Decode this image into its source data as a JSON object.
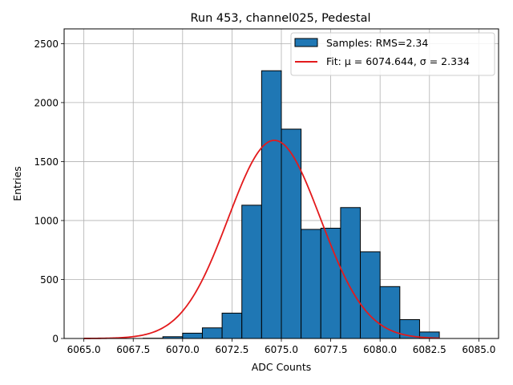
{
  "chart_data": {
    "type": "bar",
    "title": "Run 453, channel025, Pedestal",
    "xlabel": "ADC Counts",
    "ylabel": "Entries",
    "xlim": [
      6064.0,
      6086.0
    ],
    "ylim": [
      0,
      2625
    ],
    "xticks": [
      "6065.0",
      "6067.5",
      "6070.0",
      "6072.5",
      "6075.0",
      "6077.5",
      "6080.0",
      "6082.5",
      "6085.0"
    ],
    "yticks": [
      "0",
      "500",
      "1000",
      "1500",
      "2000",
      "2500"
    ],
    "grid": true,
    "legend_position": "top-right",
    "bins": {
      "edges": [
        6068,
        6069,
        6070,
        6071,
        6072,
        6073,
        6074,
        6075,
        6076,
        6077,
        6078,
        6079,
        6080,
        6081,
        6082
      ],
      "counts": [
        2,
        15,
        45,
        90,
        215,
        1130,
        2270,
        1775,
        925,
        935,
        1110,
        735,
        440,
        160,
        55
      ]
    },
    "fit": {
      "mu": 6074.644,
      "sigma": 2.334,
      "amplitude": 1680,
      "x_range": [
        6065.0,
        6083.0
      ]
    },
    "legend": [
      {
        "label": "Samples: RMS=2.34",
        "kind": "patch"
      },
      {
        "label": "Fit: μ = 6074.644, σ = 2.334",
        "kind": "line"
      }
    ],
    "colors": {
      "bar_fill": "#1f77b4",
      "bar_edge": "#000000",
      "fit_line": "#e31a1c",
      "grid": "#b0b0b0"
    }
  }
}
